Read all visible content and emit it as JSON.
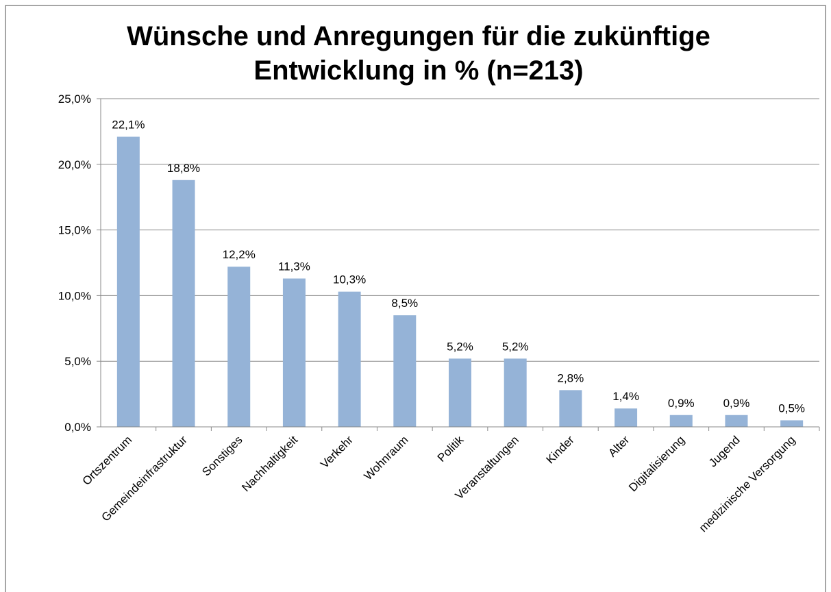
{
  "chart_data": {
    "type": "bar",
    "title": "Wünsche und Anregungen für die zukünftige Entwicklung in % (n=213)",
    "categories": [
      "Ortszentrum",
      "Gemeindeinfrastruktur",
      "Sonstiges",
      "Nachhaltigkeit",
      "Verkehr",
      "Wohnraum",
      "Politik",
      "Veranstaltungen",
      "Kinder",
      "Alter",
      "Digitalisierung",
      "Jugend",
      "medizinische Versorgung"
    ],
    "values": [
      22.1,
      18.8,
      12.2,
      11.3,
      10.3,
      8.5,
      5.2,
      5.2,
      2.8,
      1.4,
      0.9,
      0.9,
      0.5
    ],
    "value_labels": [
      "22,1%",
      "18,8%",
      "12,2%",
      "11,3%",
      "10,3%",
      "8,5%",
      "5,2%",
      "5,2%",
      "2,8%",
      "1,4%",
      "0,9%",
      "0,9%",
      "0,5%"
    ],
    "color": "#95b3d7",
    "ylim": [
      0,
      25
    ],
    "yticks": [
      {
        "value": 0,
        "label": "0,0%"
      },
      {
        "value": 5,
        "label": "5,0%"
      },
      {
        "value": 10,
        "label": "10,0%"
      },
      {
        "value": 15,
        "label": "15,0%"
      },
      {
        "value": 20,
        "label": "20,0%"
      },
      {
        "value": 25,
        "label": "25,0%"
      }
    ],
    "grid": true
  }
}
